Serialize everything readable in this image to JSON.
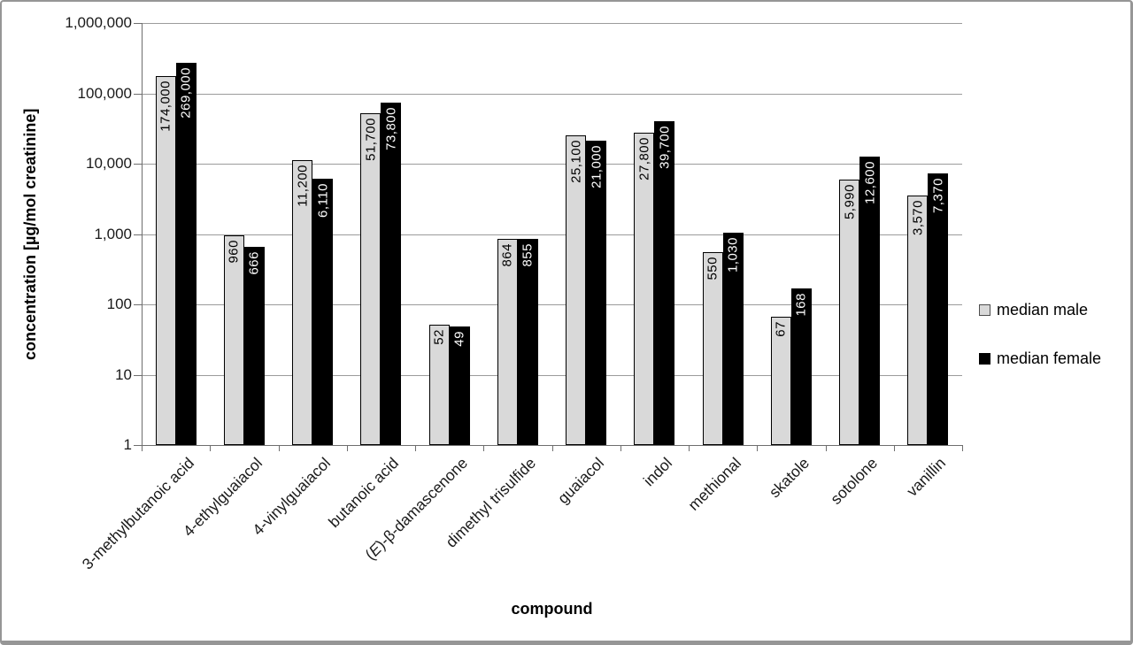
{
  "chart_data": {
    "type": "bar",
    "title": "",
    "xlabel": "compound",
    "ylabel": "concentration [µg/mol creatinine]",
    "y_scale": "log10",
    "ylim": [
      1,
      1000000
    ],
    "y_ticks": [
      "1",
      "10",
      "100",
      "1,000",
      "10,000",
      "100,000",
      "1,000,000"
    ],
    "grid": true,
    "legend_position": "right",
    "categories": [
      "3-methylbutanoic acid",
      "4-ethylguaiacol",
      "4-vinylguaiacol",
      "butanoic acid",
      "(E)-β-damascenone",
      "dimethyl trisulfide",
      "guaiacol",
      "indol",
      "methional",
      "skatole",
      "sotolone",
      "vanillin"
    ],
    "series": [
      {
        "name": "median male",
        "color": "#d9d9d9",
        "label_color": "#000000",
        "values": [
          174000,
          960,
          11200,
          51700,
          52,
          864,
          25100,
          27800,
          550,
          67,
          5990,
          3570
        ]
      },
      {
        "name": "median female",
        "color": "#000000",
        "label_color": "#ffffff",
        "values": [
          269000,
          666,
          6110,
          73800,
          49,
          855,
          21000,
          39700,
          1030,
          168,
          12600,
          7370
        ]
      }
    ],
    "style_colors": {
      "gridline": "#9b9b9b",
      "axis": "#6e6e6e",
      "frame_border": "#969696"
    }
  }
}
